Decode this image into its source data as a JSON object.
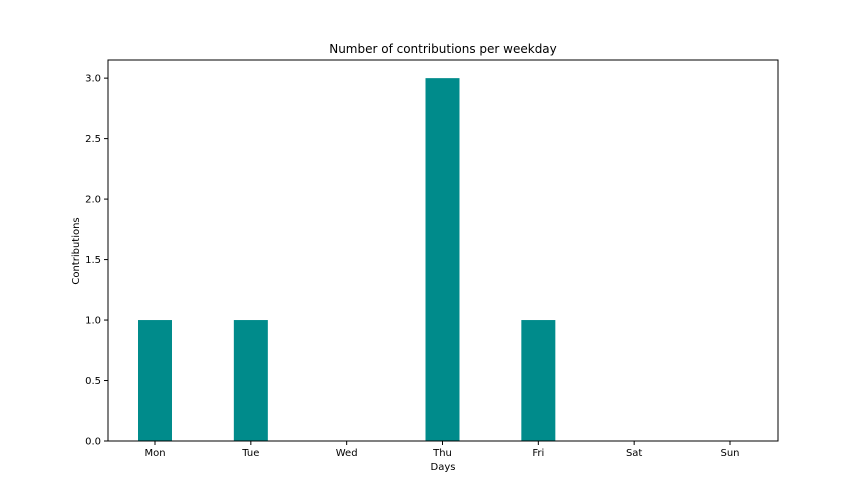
{
  "chart_data": {
    "type": "bar",
    "title": "Number of contributions per weekday",
    "xlabel": "Days",
    "ylabel": "Contributions",
    "categories": [
      "Mon",
      "Tue",
      "Wed",
      "Thu",
      "Fri",
      "Sat",
      "Sun"
    ],
    "values": [
      1,
      1,
      0,
      3,
      1,
      0,
      0
    ],
    "ylim": [
      0,
      3.15
    ],
    "yticks": [
      "0.0",
      "0.5",
      "1.0",
      "1.5",
      "2.0",
      "2.5",
      "3.0"
    ],
    "grid": false,
    "bar_color": "#008b8b"
  }
}
